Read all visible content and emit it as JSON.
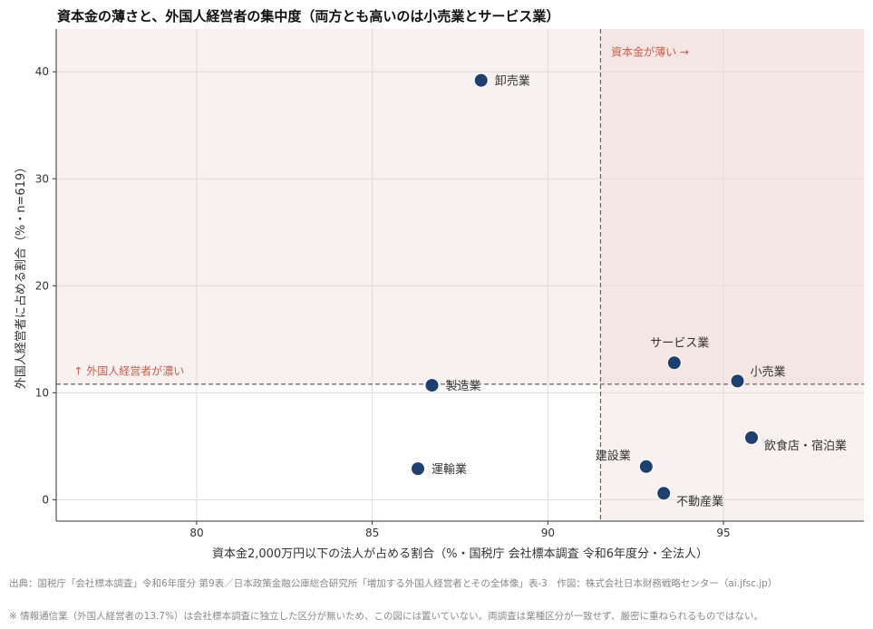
{
  "title": "資本金の薄さと、外国人経営者の集中度（両方とも高いのは小売業とサービス業）",
  "source": "出典：国税庁「会社標本調査」令和6年度分 第9表／日本政策金融公庫総合研究所「増加する外国人経営者とその全体像」表-3　作図：株式会社日本財務戦略センター（ai.jfsc.jp）",
  "footnote": "※ 情報通信業（外国人経営者の13.7%）は会社標本調査に独立した区分が無いため、この図には置いていない。両調査は業種区分が一致せず、厳密に重ねられるものではない。",
  "colors": {
    "point": "#1f3f6e",
    "quadrant_top": "#f8f1f1",
    "quadrant_right": "#f8f1f1",
    "quadrant_overlap": "#f4e6e4",
    "annotation": "#c9604a",
    "ref_line": "#666666"
  },
  "chart_data": {
    "type": "scatter",
    "xlabel": "資本金2,000万円以下の法人が占める割合（%・国税庁 会社標本調査 令和6年度分・全法人）",
    "ylabel": "外国人経営者に占める割合（%・n=619）",
    "xlim": [
      76,
      99
    ],
    "ylim": [
      -2,
      44
    ],
    "xticks": [
      80,
      85,
      90,
      95
    ],
    "yticks": [
      0,
      10,
      20,
      30,
      40
    ],
    "grid": true,
    "ref_x": 91.5,
    "ref_y": 10.8,
    "annotations": [
      {
        "text": "資本金が薄い →",
        "x": 91.8,
        "y": 41.5
      },
      {
        "text": "↑ 外国人経営者が濃い",
        "x": 76.5,
        "y": 11.7
      }
    ],
    "points": [
      {
        "label": "卸売業",
        "x": 88.1,
        "y": 39.2,
        "label_pos": "right"
      },
      {
        "label": "製造業",
        "x": 86.7,
        "y": 10.7,
        "label_pos": "right"
      },
      {
        "label": "運輸業",
        "x": 86.3,
        "y": 2.9,
        "label_pos": "right"
      },
      {
        "label": "サービス業",
        "x": 93.6,
        "y": 12.8,
        "label_pos": "above"
      },
      {
        "label": "小売業",
        "x": 95.4,
        "y": 11.1,
        "label_pos": "upper-right"
      },
      {
        "label": "飲食店・宿泊業",
        "x": 95.8,
        "y": 5.8,
        "label_pos": "lower-right"
      },
      {
        "label": "建設業",
        "x": 92.8,
        "y": 3.1,
        "label_pos": "upper-left"
      },
      {
        "label": "不動産業",
        "x": 93.3,
        "y": 0.6,
        "label_pos": "lower-right"
      }
    ]
  }
}
